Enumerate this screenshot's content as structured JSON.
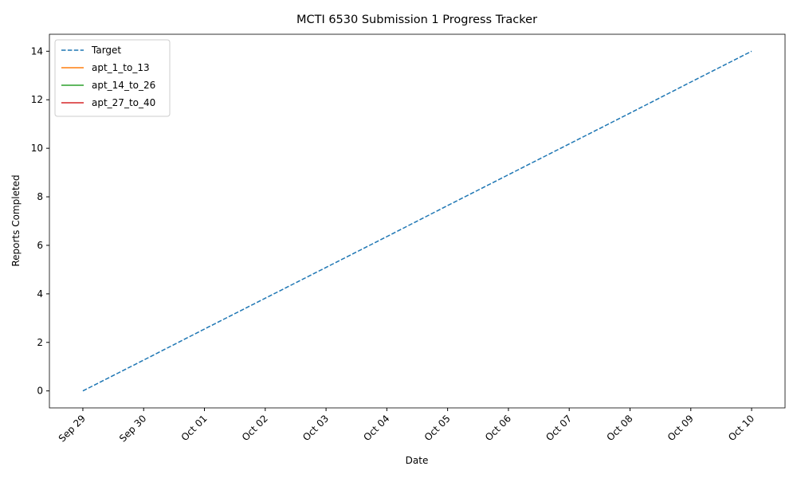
{
  "chart_data": {
    "type": "line",
    "title": "MCTI 6530 Submission 1 Progress Tracker",
    "x_label": "Date",
    "y_label": "Reports Completed",
    "categories": [
      "Sep 29",
      "Sep 30",
      "Oct 01",
      "Oct 02",
      "Oct 03",
      "Oct 04",
      "Oct 05",
      "Oct 06",
      "Oct 07",
      "Oct 08",
      "Oct 09",
      "Oct 10"
    ],
    "series": [
      {
        "name": "Target",
        "color": "#1f77b4",
        "dashed": true,
        "values": [
          0,
          1.27,
          2.55,
          3.82,
          5.09,
          6.36,
          7.64,
          8.91,
          10.18,
          11.45,
          12.73,
          14
        ]
      },
      {
        "name": "apt_1_to_13",
        "color": "#ff7f0e",
        "values": [
          null,
          null,
          null,
          null,
          null,
          null,
          null,
          null,
          null,
          null,
          null,
          null
        ]
      },
      {
        "name": "apt_14_to_26",
        "color": "#2ca02c",
        "values": [
          null,
          null,
          null,
          null,
          null,
          null,
          null,
          null,
          null,
          null,
          null,
          null
        ]
      },
      {
        "name": "apt_27_to_40",
        "color": "#d62728",
        "values": [
          null,
          null,
          null,
          null,
          null,
          null,
          null,
          null,
          null,
          null,
          null,
          null
        ]
      }
    ],
    "ylim": [
      -0.7,
      14.7
    ],
    "yticks": [
      0,
      2,
      4,
      6,
      8,
      10,
      12,
      14
    ],
    "legend": "upper left",
    "grid": false
  }
}
